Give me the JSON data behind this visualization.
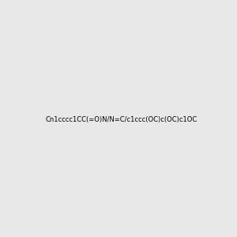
{
  "smiles": "Cn1cccc1CC(=O)N/N=C/c1ccc(OC)c(OC)c1OC",
  "image_size": 300,
  "background_color": "#e8e8e8",
  "title": ""
}
